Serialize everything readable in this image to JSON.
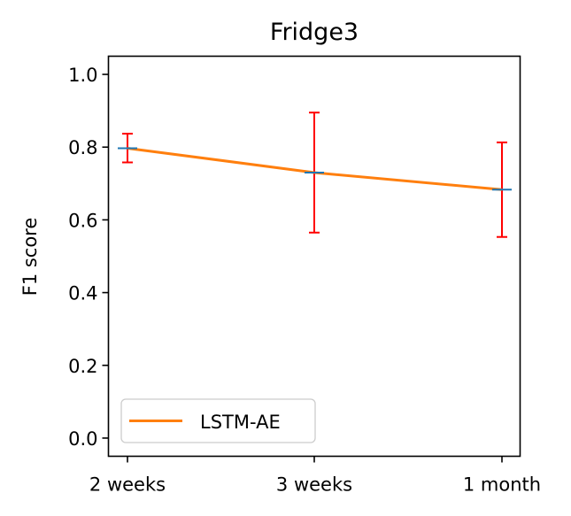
{
  "chart_data": {
    "type": "line",
    "title": "Fridge3",
    "xlabel": "",
    "ylabel": "F1 score",
    "categories": [
      "2 weeks",
      "3 weeks",
      "1 month"
    ],
    "ylim": [
      -0.05,
      1.05
    ],
    "yticks": [
      "0.0",
      "0.2",
      "0.4",
      "0.6",
      "0.8",
      "1.0"
    ],
    "ytick_values": [
      0.0,
      0.2,
      0.4,
      0.6,
      0.8,
      1.0
    ],
    "grid": false,
    "legend_position": "lower-left",
    "series": [
      {
        "name": "LSTM-AE",
        "values": [
          0.797,
          0.73,
          0.683
        ],
        "error_low": [
          0.758,
          0.565,
          0.553
        ],
        "error_high": [
          0.837,
          0.895,
          0.813
        ],
        "color": "#ff7f0e",
        "marker_color": "#1f77b4",
        "error_color": "#ff0000"
      }
    ]
  }
}
